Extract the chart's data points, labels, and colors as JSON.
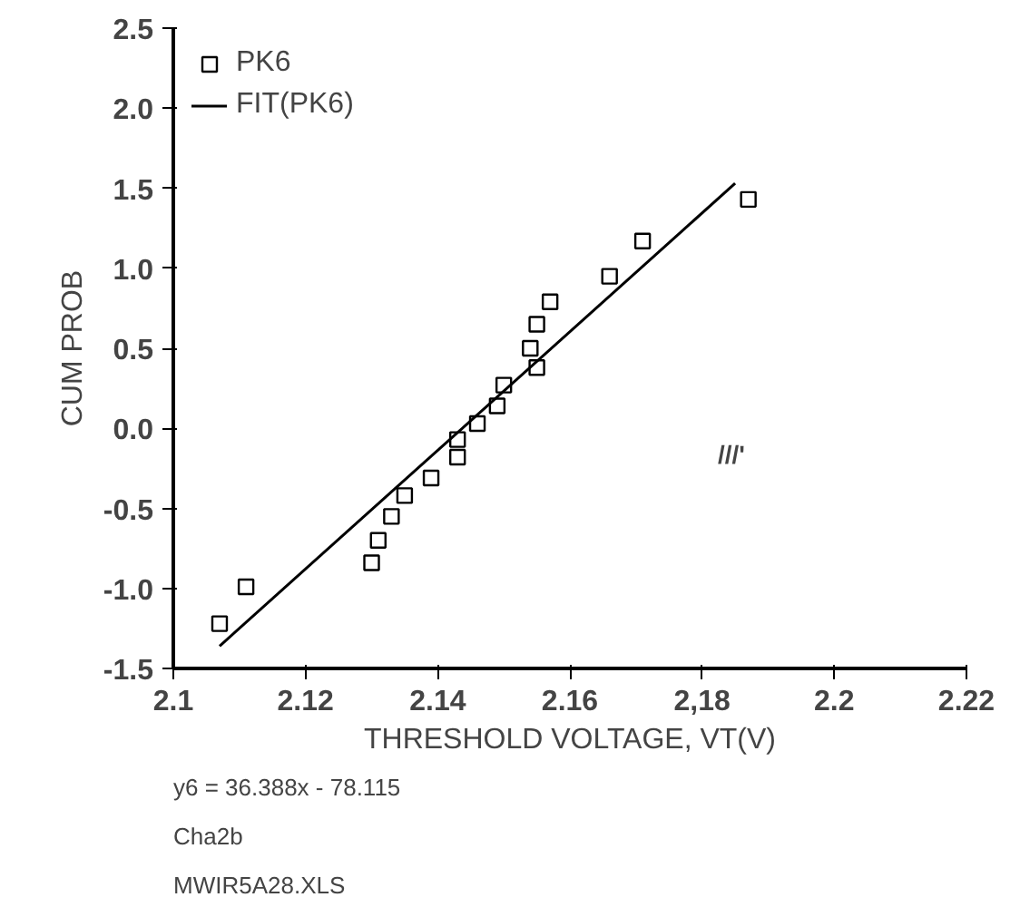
{
  "chart_data": {
    "type": "scatter",
    "xlabel": "THRESHOLD VOLTAGE, VT(V)",
    "ylabel": "CUM PROB",
    "xlim": [
      2.1,
      2.22
    ],
    "ylim": [
      -1.5,
      2.5
    ],
    "xticks": [
      2.1,
      2.12,
      2.14,
      2.16,
      {
        "value": 2.18,
        "label": "2,18"
      },
      2.2,
      2.22
    ],
    "yticks": [
      {
        "value": -1.5,
        "label": "-1.5"
      },
      {
        "value": -1.0,
        "label": "-1.0"
      },
      {
        "value": -0.5,
        "label": "-0.5"
      },
      {
        "value": 0.0,
        "label": "0.0"
      },
      {
        "value": 0.5,
        "label": "0.5"
      },
      {
        "value": 1.0,
        "label": "1.0"
      },
      {
        "value": 1.5,
        "label": "1.5"
      },
      {
        "value": 2.0,
        "label": "2.0"
      },
      {
        "value": 2.5,
        "label": "2.5"
      }
    ],
    "grid": false,
    "legend": "top left",
    "series": [
      {
        "name": "PK6",
        "marker": "square",
        "color": "#000000",
        "x": [
          2.107,
          2.111,
          2.13,
          2.131,
          2.133,
          2.135,
          2.139,
          2.143,
          2.143,
          2.146,
          2.149,
          2.15,
          2.155,
          2.154,
          2.155,
          2.157,
          2.166,
          2.171,
          2.187
        ],
        "values": [
          -1.22,
          -0.99,
          -0.84,
          -0.7,
          -0.55,
          -0.42,
          -0.31,
          -0.18,
          -0.07,
          0.03,
          0.14,
          0.27,
          0.38,
          0.5,
          0.65,
          0.79,
          0.95,
          1.17,
          1.43
        ]
      },
      {
        "name": "FIT(PK6)",
        "type": "line",
        "color": "#000000",
        "x": [
          2.107,
          2.185
        ],
        "values": [
          -1.36,
          1.53
        ]
      }
    ],
    "annotations": [
      "///'",
      "y6 = 36.388x - 78.115",
      "Cha2b",
      "MWIR5A28.XLS"
    ]
  }
}
